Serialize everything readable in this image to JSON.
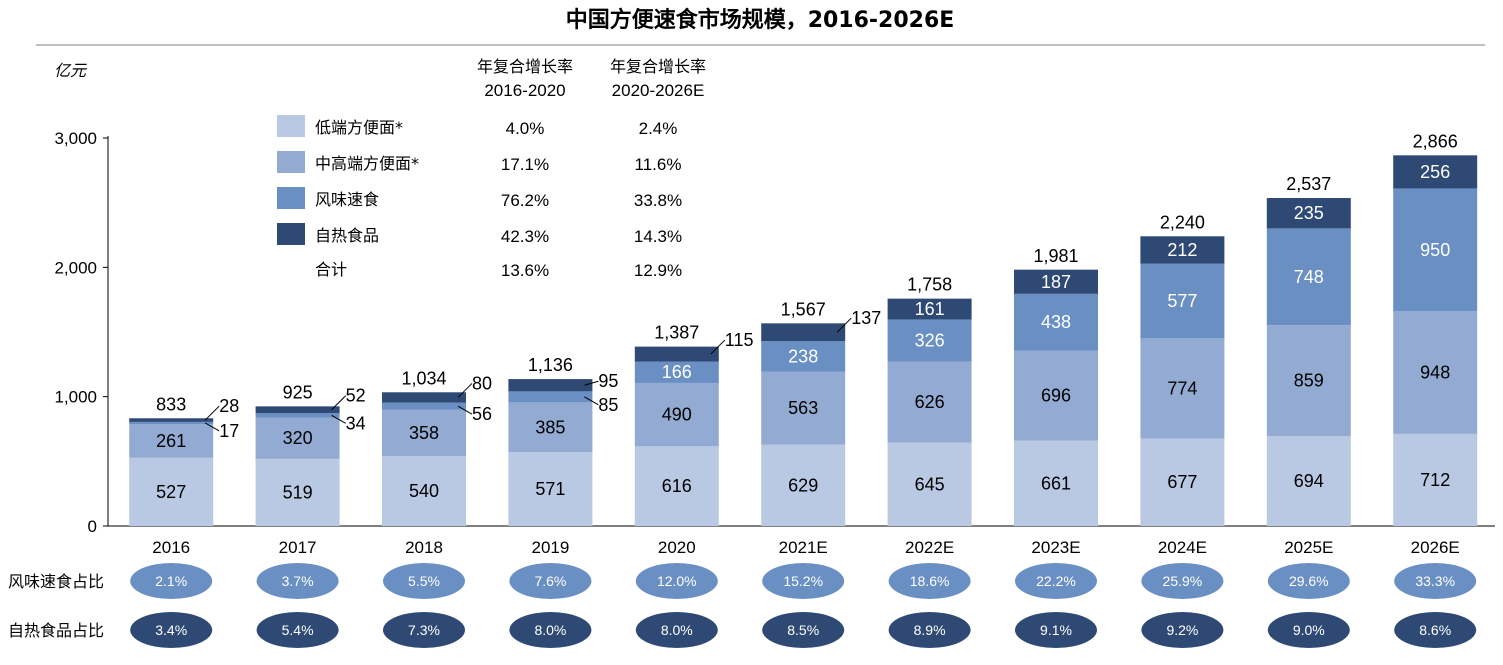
{
  "chart_data": {
    "type": "bar",
    "stacked": true,
    "title": "中国方便速食市场规模，2016-2026E",
    "ylabel": "亿元",
    "ylim": [
      0,
      3000
    ],
    "yticks": [
      "0",
      "1,000",
      "2,000",
      "3,000"
    ],
    "categories": [
      "2016",
      "2017",
      "2018",
      "2019",
      "2020",
      "2021E",
      "2022E",
      "2023E",
      "2024E",
      "2025E",
      "2026E"
    ],
    "series": [
      {
        "name": "低端方便面*",
        "color": "#b9c9e3",
        "values": [
          527,
          519,
          540,
          571,
          616,
          629,
          645,
          661,
          677,
          694,
          712
        ]
      },
      {
        "name": "中高端方便面*",
        "color": "#93abd2",
        "values": [
          261,
          320,
          358,
          385,
          490,
          563,
          626,
          696,
          774,
          859,
          948
        ]
      },
      {
        "name": "风味速食",
        "color": "#6a8fc3",
        "values": [
          17,
          34,
          56,
          85,
          166,
          238,
          326,
          438,
          577,
          748,
          950
        ]
      },
      {
        "name": "自热食品",
        "color": "#2e4a74",
        "values": [
          28,
          52,
          80,
          95,
          115,
          137,
          161,
          187,
          212,
          235,
          256
        ]
      }
    ],
    "value_labels": [
      [
        "527",
        "519",
        "540",
        "571",
        "616",
        "629",
        "645",
        "661",
        "677",
        "694",
        "712"
      ],
      [
        "261",
        "320",
        "358",
        "385",
        "490",
        "563",
        "626",
        "696",
        "774",
        "859",
        "948"
      ],
      [
        "17",
        "34",
        "56",
        "85",
        "166",
        "238",
        "326",
        "438",
        "577",
        "748",
        "950"
      ],
      [
        "28",
        "52",
        "80",
        "95",
        "115",
        "137",
        "161",
        "187",
        "212",
        "235",
        "256"
      ]
    ],
    "totals": [
      833,
      925,
      1034,
      1136,
      1387,
      1567,
      1758,
      1981,
      2240,
      2537,
      2866
    ],
    "total_labels": [
      "833",
      "925",
      "1,034",
      "1,136",
      "1,387",
      "1,567",
      "1,758",
      "1,981",
      "2,240",
      "2,537",
      "2,866"
    ],
    "cagr_headers": [
      {
        "line1": "年复合增长率",
        "line2": "2016-2020"
      },
      {
        "line1": "年复合增长率",
        "line2": "2020-2026E"
      }
    ],
    "cagr_rows": [
      {
        "label": "低端方便面*",
        "a": "4.0%",
        "b": "2.4%"
      },
      {
        "label": "中高端方便面*",
        "a": "17.1%",
        "b": "11.6%"
      },
      {
        "label": "风味速食",
        "a": "76.2%",
        "b": "33.8%"
      },
      {
        "label": "自热食品",
        "a": "42.3%",
        "b": "14.3%"
      },
      {
        "label": "合计",
        "a": "13.6%",
        "b": "12.9%"
      }
    ],
    "share_rows": [
      {
        "label": "风味速食占比",
        "color": "#6a8fc3",
        "values": [
          "2.1%",
          "3.7%",
          "5.5%",
          "7.6%",
          "12.0%",
          "15.2%",
          "18.6%",
          "22.2%",
          "25.9%",
          "29.6%",
          "33.3%"
        ]
      },
      {
        "label": "自热食品占比",
        "color": "#2e4a74",
        "values": [
          "3.4%",
          "5.4%",
          "7.3%",
          "8.0%",
          "8.0%",
          "8.5%",
          "8.9%",
          "9.1%",
          "9.2%",
          "9.0%",
          "8.6%"
        ]
      }
    ]
  }
}
